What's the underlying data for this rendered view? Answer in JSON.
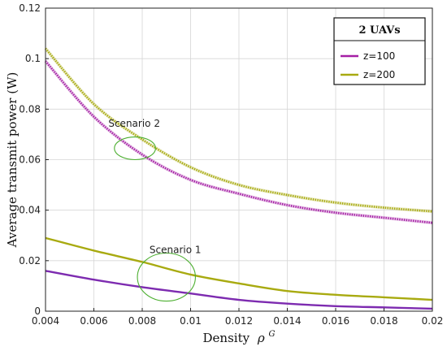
{
  "chart_data": {
    "type": "line",
    "xlabel": "Density",
    "xlabel_symbol": "ρ",
    "xlabel_superscript": "G",
    "ylabel": "Average transmit power (W)",
    "xlim": [
      0.004,
      0.02
    ],
    "ylim": [
      0,
      0.12
    ],
    "grid": true,
    "x_ticks": [
      "0.004",
      "0.006",
      "0.008",
      "0.01",
      "0.012",
      "0.014",
      "0.016",
      "0.018",
      "0.02"
    ],
    "y_ticks": [
      "0",
      "0.02",
      "0.04",
      "0.06",
      "0.08",
      "0.1",
      "0.12"
    ],
    "legend": {
      "title": "2 UAVs",
      "position": "top-right",
      "entries": [
        {
          "label": "z=100",
          "color": "#a51ea5"
        },
        {
          "label": "z=200",
          "color": "#a8aa10"
        }
      ]
    },
    "x": [
      0.004,
      0.006,
      0.008,
      0.01,
      0.012,
      0.014,
      0.016,
      0.018,
      0.02
    ],
    "series": [
      {
        "name": "z=100",
        "group": "Scenario 2",
        "color": "#a51ea5",
        "style": "dotted",
        "values": [
          0.099,
          0.077,
          0.062,
          0.052,
          0.0465,
          0.042,
          0.039,
          0.037,
          0.035
        ]
      },
      {
        "name": "z=200",
        "group": "Scenario 2",
        "color": "#a8aa10",
        "style": "dotted",
        "values": [
          0.104,
          0.082,
          0.068,
          0.057,
          0.05,
          0.046,
          0.043,
          0.041,
          0.0395
        ]
      },
      {
        "name": "z=100",
        "group": "Scenario 1",
        "color": "#7d2bb0",
        "style": "solid",
        "values": [
          0.016,
          0.0125,
          0.0095,
          0.007,
          0.0045,
          0.003,
          0.002,
          0.0015,
          0.001
        ]
      },
      {
        "name": "z=200",
        "group": "Scenario 1",
        "color": "#a8aa10",
        "style": "solid",
        "values": [
          0.029,
          0.024,
          0.0195,
          0.0145,
          0.011,
          0.008,
          0.0065,
          0.0055,
          0.0045
        ]
      }
    ],
    "annotations": [
      {
        "label": "Scenario 2",
        "x": 0.0077,
        "y": 0.0645,
        "rx": 0.00085,
        "ry": 0.0045,
        "label_x": 0.0066,
        "label_y": 0.073,
        "color": "#4caf30"
      },
      {
        "label": "Scenario 1",
        "x": 0.009,
        "y": 0.0135,
        "rx": 0.0012,
        "ry": 0.0095,
        "label_x": 0.0083,
        "label_y": 0.023,
        "color": "#4caf30"
      }
    ]
  }
}
